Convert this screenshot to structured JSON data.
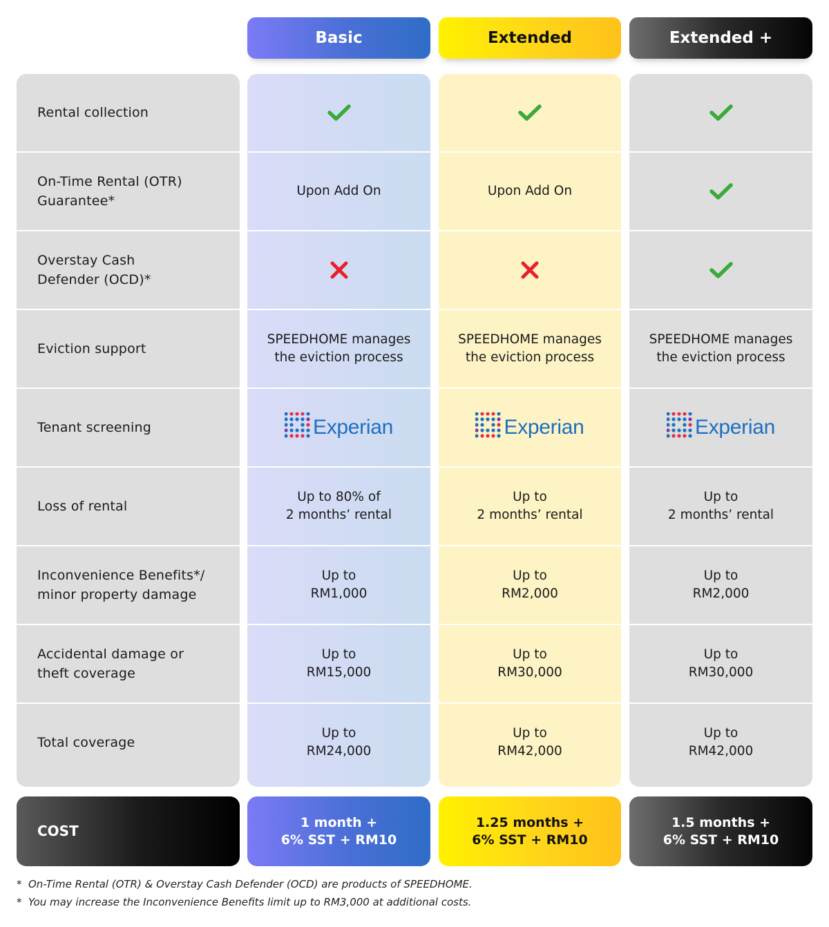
{
  "plans": {
    "basic": {
      "name": "Basic",
      "color": "#4a6fd6"
    },
    "extended": {
      "name": "Extended",
      "color": "#ffd51a"
    },
    "extended_plus": {
      "name": "Extended +",
      "color": "#111111"
    }
  },
  "features": [
    {
      "label": "Rental collection",
      "basic": {
        "type": "check"
      },
      "extended": {
        "type": "check"
      },
      "extended_plus": {
        "type": "check"
      }
    },
    {
      "label": "On-Time Rental (OTR)\nGuarantee*",
      "basic": {
        "type": "text",
        "text": "Upon Add On"
      },
      "extended": {
        "type": "text",
        "text": "Upon Add On"
      },
      "extended_plus": {
        "type": "check"
      }
    },
    {
      "label": "Overstay Cash\nDefender (OCD)*",
      "basic": {
        "type": "cross"
      },
      "extended": {
        "type": "cross"
      },
      "extended_plus": {
        "type": "check"
      }
    },
    {
      "label": "Eviction support",
      "basic": {
        "type": "text",
        "text": "SPEEDHOME manages\nthe eviction process"
      },
      "extended": {
        "type": "text",
        "text": "SPEEDHOME manages\nthe eviction process"
      },
      "extended_plus": {
        "type": "text",
        "text": "SPEEDHOME manages\nthe eviction process"
      }
    },
    {
      "label": "Tenant screening",
      "basic": {
        "type": "logo",
        "text": "Experian"
      },
      "extended": {
        "type": "logo",
        "text": "Experian"
      },
      "extended_plus": {
        "type": "logo",
        "text": "Experian"
      }
    },
    {
      "label": "Loss of rental",
      "basic": {
        "type": "text",
        "text": "Up to 80% of\n2 months’ rental"
      },
      "extended": {
        "type": "text",
        "text": "Up to\n2 months’ rental"
      },
      "extended_plus": {
        "type": "text",
        "text": "Up to\n2 months’ rental"
      }
    },
    {
      "label": "Inconvenience Benefits*/\nminor property damage",
      "basic": {
        "type": "text",
        "text": "Up to\nRM1,000"
      },
      "extended": {
        "type": "text",
        "text": "Up to\nRM2,000"
      },
      "extended_plus": {
        "type": "text",
        "text": "Up to\nRM2,000"
      }
    },
    {
      "label": "Accidental damage or\ntheft coverage",
      "basic": {
        "type": "text",
        "text": "Up to\nRM15,000"
      },
      "extended": {
        "type": "text",
        "text": "Up to\nRM30,000"
      },
      "extended_plus": {
        "type": "text",
        "text": "Up to\nRM30,000"
      }
    },
    {
      "label": "Total coverage",
      "basic": {
        "type": "text",
        "text": "Up to\nRM24,000"
      },
      "extended": {
        "type": "text",
        "text": "Up to\nRM42,000"
      },
      "extended_plus": {
        "type": "text",
        "text": "Up to\nRM42,000"
      }
    }
  ],
  "cost": {
    "label": "COST",
    "basic": "1 month +\n6% SST + RM10",
    "extended": "1.25 months +\n6% SST + RM10",
    "extended_plus": "1.5 months +\n6% SST + RM10"
  },
  "footnotes": [
    {
      "marker": "*",
      "text": "On-Time Rental (OTR) & Overstay Cash Defender (OCD) are products of SPEEDHOME."
    },
    {
      "marker": "*",
      "text": "You may increase the Inconvenience Benefits limit up to RM3,000 at additional costs."
    }
  ],
  "icons": {
    "check": {
      "name": "check-icon",
      "color": "#3aaa3a"
    },
    "cross": {
      "name": "cross-icon",
      "color": "#e8202a"
    },
    "logo_dots": {
      "name": "experian-logo-icon",
      "blue": "#1d6fc0",
      "red": "#e0304a",
      "purple": "#7a3aa0"
    }
  }
}
